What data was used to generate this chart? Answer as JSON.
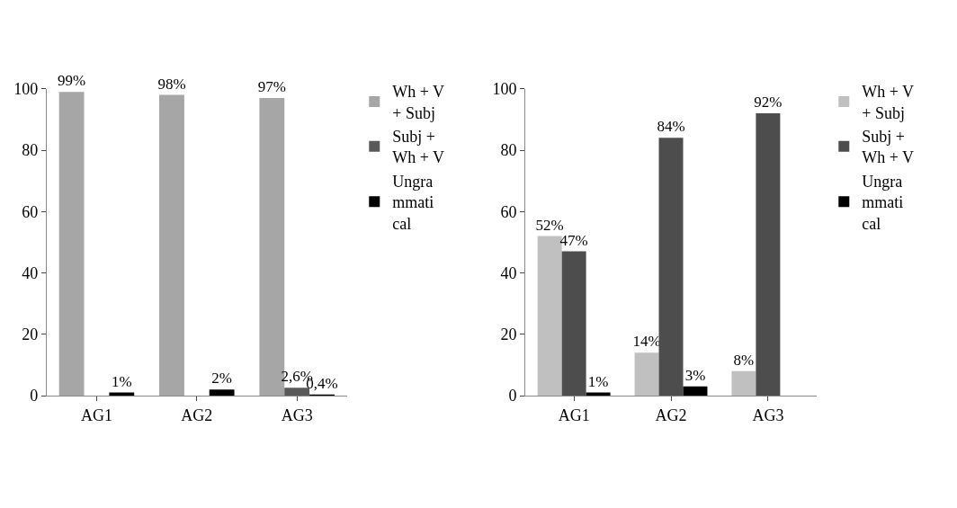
{
  "chart_data": [
    {
      "type": "bar",
      "categories": [
        "AG1",
        "AG2",
        "AG3"
      ],
      "ylim": [
        0,
        100
      ],
      "yticks": [
        0,
        20,
        40,
        60,
        80,
        100
      ],
      "legend": "right",
      "series": [
        {
          "name": "Wh + V + Subj",
          "color": "#a6a6a6",
          "values": [
            99,
            98,
            97
          ],
          "value_labels": [
            "99%",
            "98%",
            "97%"
          ]
        },
        {
          "name": "Subj + Wh + V",
          "color": "#595959",
          "values": [
            0,
            0,
            2.6
          ],
          "value_labels": [
            null,
            null,
            "2,6%"
          ]
        },
        {
          "name": "Ungrammatical",
          "color": "#000000",
          "values": [
            1,
            2,
            0.4
          ],
          "value_labels": [
            "1%",
            "2%",
            "0,4%"
          ]
        }
      ]
    },
    {
      "type": "bar",
      "categories": [
        "AG1",
        "AG2",
        "AG3"
      ],
      "ylim": [
        0,
        100
      ],
      "yticks": [
        0,
        20,
        40,
        60,
        80,
        100
      ],
      "legend": "right",
      "series": [
        {
          "name": "Wh + V + Subj",
          "color": "#c0c0c0",
          "values": [
            52,
            14,
            8
          ],
          "value_labels": [
            "52%",
            "14%",
            "8%"
          ]
        },
        {
          "name": "Subj + Wh + V",
          "color": "#4d4d4d",
          "values": [
            47,
            84,
            92
          ],
          "value_labels": [
            "47%",
            "84%",
            "92%"
          ]
        },
        {
          "name": "Ungrammatical",
          "color": "#000000",
          "values": [
            1,
            3,
            0
          ],
          "value_labels": [
            "1%",
            "3%",
            null
          ]
        }
      ]
    }
  ]
}
